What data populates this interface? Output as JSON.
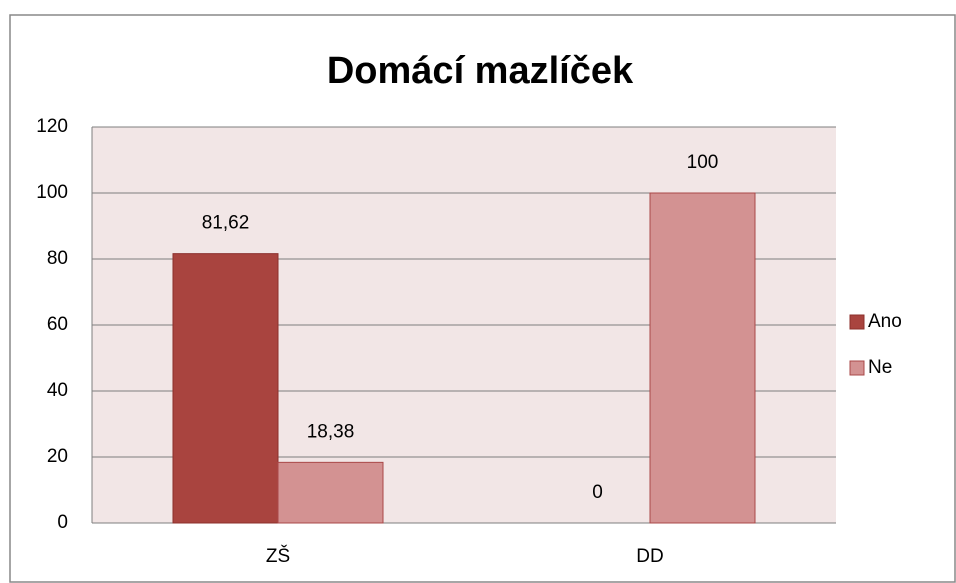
{
  "chart_data": {
    "type": "bar",
    "title": "Domácí mazlíček",
    "categories": [
      "ZŠ",
      "DD"
    ],
    "series": [
      {
        "name": "Ano",
        "color": "#a9443f",
        "values": [
          81.62,
          0
        ],
        "value_labels": [
          "81,62",
          "0"
        ]
      },
      {
        "name": "Ne",
        "color": "#d39292",
        "values": [
          18.38,
          100
        ],
        "value_labels": [
          "18,38",
          "100"
        ]
      }
    ],
    "ylim": [
      0,
      120
    ],
    "yticks": [
      0,
      20,
      40,
      60,
      80,
      100,
      120
    ],
    "grid": true,
    "legend": "right"
  }
}
